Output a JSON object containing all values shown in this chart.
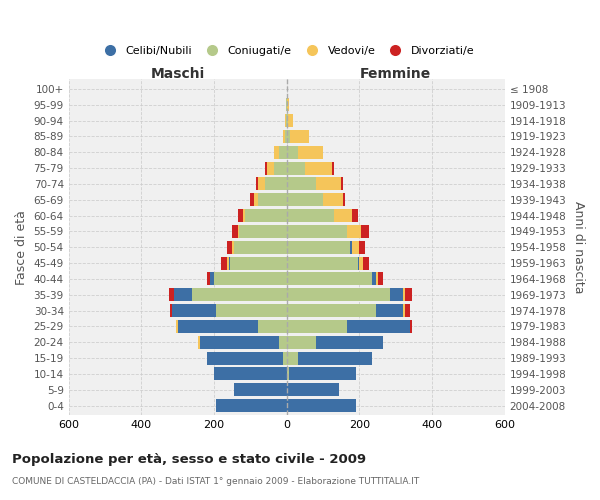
{
  "age_groups": [
    "0-4",
    "5-9",
    "10-14",
    "15-19",
    "20-24",
    "25-29",
    "30-34",
    "35-39",
    "40-44",
    "45-49",
    "50-54",
    "55-59",
    "60-64",
    "65-69",
    "70-74",
    "75-79",
    "80-84",
    "85-89",
    "90-94",
    "95-99",
    "100+"
  ],
  "birth_years": [
    "2004-2008",
    "1999-2003",
    "1994-1998",
    "1989-1993",
    "1984-1988",
    "1979-1983",
    "1974-1978",
    "1969-1973",
    "1964-1968",
    "1959-1963",
    "1954-1958",
    "1949-1953",
    "1944-1948",
    "1939-1943",
    "1934-1938",
    "1929-1933",
    "1924-1928",
    "1919-1923",
    "1914-1918",
    "1909-1913",
    "≤ 1908"
  ],
  "males": {
    "celibe": [
      195,
      145,
      200,
      210,
      220,
      220,
      120,
      50,
      10,
      5,
      0,
      0,
      0,
      0,
      0,
      0,
      0,
      0,
      0,
      0,
      0
    ],
    "coniugato": [
      0,
      0,
      0,
      10,
      20,
      80,
      195,
      260,
      200,
      155,
      145,
      130,
      115,
      80,
      60,
      35,
      20,
      5,
      3,
      1,
      0
    ],
    "vedovo": [
      0,
      0,
      0,
      0,
      5,
      5,
      0,
      0,
      0,
      5,
      5,
      5,
      5,
      10,
      20,
      20,
      15,
      5,
      1,
      0,
      0
    ],
    "divorziato": [
      0,
      0,
      0,
      0,
      0,
      0,
      5,
      15,
      10,
      15,
      15,
      15,
      15,
      10,
      5,
      5,
      0,
      0,
      0,
      0,
      0
    ]
  },
  "females": {
    "nubile": [
      190,
      145,
      185,
      205,
      185,
      175,
      75,
      35,
      10,
      5,
      5,
      0,
      0,
      0,
      0,
      0,
      0,
      0,
      0,
      0,
      0
    ],
    "coniugata": [
      0,
      0,
      5,
      30,
      80,
      165,
      245,
      285,
      235,
      195,
      175,
      165,
      130,
      100,
      80,
      50,
      30,
      10,
      3,
      1,
      0
    ],
    "vedova": [
      0,
      0,
      0,
      0,
      0,
      0,
      5,
      5,
      5,
      10,
      20,
      40,
      50,
      55,
      70,
      75,
      70,
      50,
      15,
      5,
      2
    ],
    "divorziata": [
      0,
      0,
      0,
      0,
      0,
      5,
      15,
      20,
      15,
      15,
      15,
      20,
      15,
      5,
      5,
      5,
      0,
      0,
      0,
      0,
      0
    ]
  },
  "colors": {
    "celibe": "#3d6fa5",
    "coniugato": "#b5c98a",
    "vedovo": "#f5c55a",
    "divorziato": "#cc2222"
  },
  "xlim": 600,
  "title": "Popolazione per età, sesso e stato civile - 2009",
  "subtitle": "COMUNE DI CASTELDACCIA (PA) - Dati ISTAT 1° gennaio 2009 - Elaborazione TUTTITALIA.IT",
  "ylabel_left": "Fasce di età",
  "ylabel_right": "Anni di nascita",
  "xlabel_maschi": "Maschi",
  "xlabel_femmine": "Femmine",
  "legend_labels": [
    "Celibi/Nubili",
    "Coniugati/e",
    "Vedovi/e",
    "Divorziati/e"
  ],
  "background_color": "#ffffff",
  "grid_color": "#cccccc"
}
